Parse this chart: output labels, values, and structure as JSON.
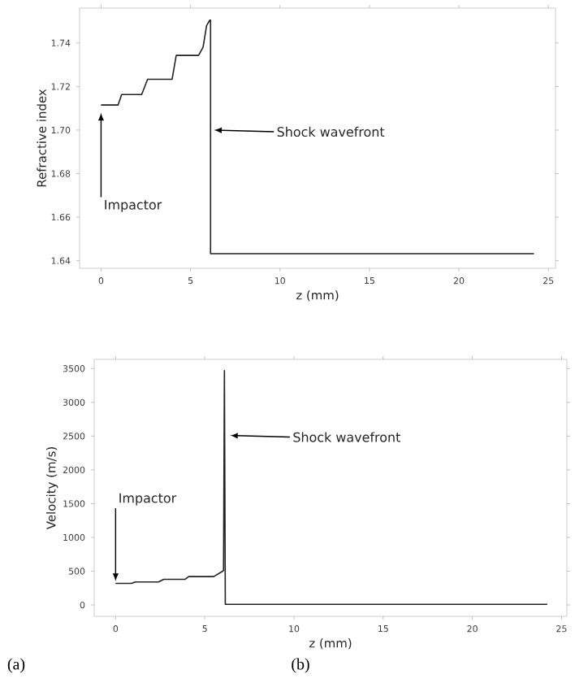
{
  "chart_data": [
    {
      "type": "line",
      "xlabel": "z (mm)",
      "ylabel": "Refractive index",
      "xlim": [
        -1.2,
        25.4
      ],
      "ylim": [
        1.6365,
        1.756
      ],
      "xticks": [
        0,
        5,
        10,
        15,
        20,
        25
      ],
      "yticks": [
        1.64,
        1.66,
        1.68,
        {
          "value": 1.7,
          "label": "1.70"
        },
        1.72,
        1.74
      ],
      "series": [
        {
          "color": "#222222",
          "x": [
            0,
            0.95,
            1.15,
            2.27,
            2.6,
            3.97,
            4.2,
            5.45,
            5.7,
            5.9,
            6.08,
            6.12,
            6.12,
            24.2
          ],
          "values": [
            1.7115,
            1.7115,
            1.7163,
            1.7163,
            1.7233,
            1.7233,
            1.7343,
            1.7343,
            1.738,
            1.748,
            1.7505,
            1.7505,
            1.6432,
            1.6432
          ]
        }
      ],
      "annotations": [
        {
          "text": "Impactor",
          "x": 0,
          "y": 1.708
        },
        {
          "text": "Shock wavefront",
          "x": 6.3,
          "y": 1.7
        },
        "(a)"
      ]
    },
    {
      "type": "line",
      "xlabel": "z (mm)",
      "ylabel": "Velocity (m/s)",
      "xlim": [
        -1.2,
        25.3
      ],
      "ylim": [
        -168,
        3636
      ],
      "xticks": [
        0,
        5,
        10,
        15,
        20,
        25
      ],
      "yticks": [
        0,
        500,
        1000,
        1500,
        2000,
        2500,
        3000,
        3500
      ],
      "series": [
        {
          "color": "#222222",
          "x": [
            0,
            0.9,
            1.1,
            2.4,
            2.7,
            3.9,
            4.1,
            5.5,
            6.0,
            6.05,
            6.1,
            6.15,
            24.2
          ],
          "values": [
            320,
            320,
            340,
            340,
            380,
            380,
            420,
            420,
            500,
            510,
            3470,
            10,
            10
          ]
        }
      ],
      "annotations": [
        {
          "text": "Impactor",
          "x": 0,
          "y": 350
        },
        {
          "text": "Shock wavefront",
          "x": 6.4,
          "y": 2510
        },
        "(b)"
      ]
    }
  ]
}
